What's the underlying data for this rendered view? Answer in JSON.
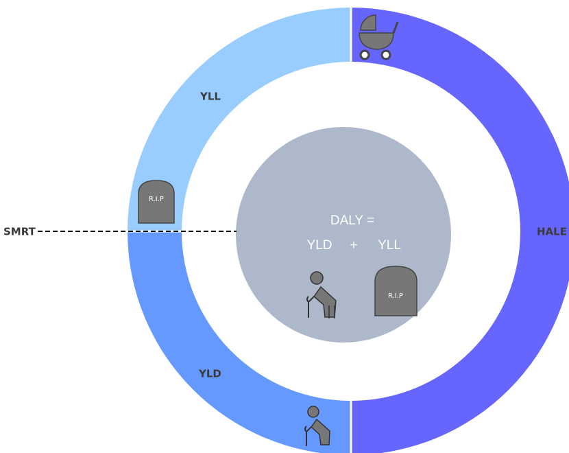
{
  "segments": {
    "yll": "YLL",
    "yld": "YLD",
    "hale": "HALE"
  },
  "marker": "SMRT",
  "center": {
    "line1": "DALY =",
    "left": "YLD",
    "plus": "+",
    "right": "YLL"
  },
  "tombstones": [
    "R.I.P",
    "R.I.P"
  ]
}
